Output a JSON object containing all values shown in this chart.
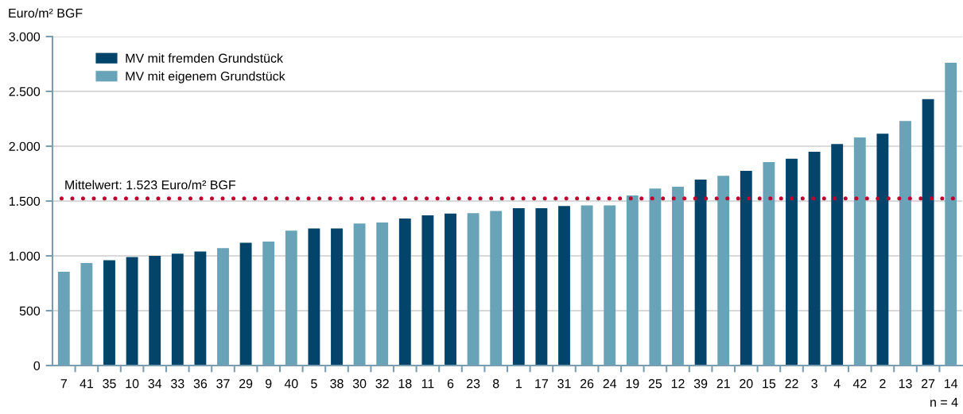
{
  "chart_data": {
    "type": "bar",
    "ylabel": "Euro/m² BGF",
    "categories": [
      "7",
      "41",
      "35",
      "10",
      "34",
      "33",
      "36",
      "37",
      "29",
      "9",
      "40",
      "5",
      "38",
      "30",
      "32",
      "18",
      "11",
      "6",
      "23",
      "8",
      "1",
      "17",
      "31",
      "26",
      "24",
      "19",
      "25",
      "12",
      "39",
      "21",
      "20",
      "15",
      "22",
      "3",
      "4",
      "42",
      "2",
      "13",
      "27",
      "14"
    ],
    "series": [
      {
        "name": "MV mit fremden Grundstück",
        "color": "#02446a",
        "values": [
          null,
          null,
          960,
          990,
          1000,
          1020,
          1040,
          null,
          1120,
          null,
          null,
          1250,
          1250,
          null,
          null,
          1340,
          1370,
          1385,
          null,
          null,
          1435,
          1435,
          1455,
          null,
          null,
          null,
          null,
          null,
          1695,
          null,
          1775,
          null,
          1885,
          1950,
          2020,
          null,
          2115,
          null,
          2430,
          null
        ]
      },
      {
        "name": "MV mit eigenem Grundstück",
        "color": "#68a3b7",
        "values": [
          855,
          935,
          null,
          null,
          null,
          null,
          null,
          1070,
          null,
          1130,
          1230,
          null,
          null,
          1295,
          1305,
          null,
          null,
          null,
          1390,
          1410,
          null,
          null,
          null,
          1460,
          1460,
          1550,
          1615,
          1630,
          null,
          1730,
          null,
          1855,
          null,
          null,
          null,
          2080,
          null,
          2230,
          null,
          2760
        ]
      }
    ],
    "stacked": true,
    "ylim": [
      0,
      3000
    ],
    "yticks": [
      0,
      500,
      {
        "value": 1000,
        "label": "1.000"
      },
      {
        "value": 1500,
        "label": "1.500"
      },
      {
        "value": 2000,
        "label": "2.000"
      },
      {
        "value": 2500,
        "label": "2.500"
      },
      {
        "value": 3000,
        "label": "3.000"
      }
    ],
    "grid": "y",
    "legend": "top left",
    "ref_lines": [
      {
        "axis": "y",
        "value": 1523,
        "label": "Mittelwert: 1.523 Euro/m² BGF",
        "color": "#c0002d",
        "line_style": "dotted"
      }
    ],
    "annotations": [
      "n = 4"
    ]
  }
}
